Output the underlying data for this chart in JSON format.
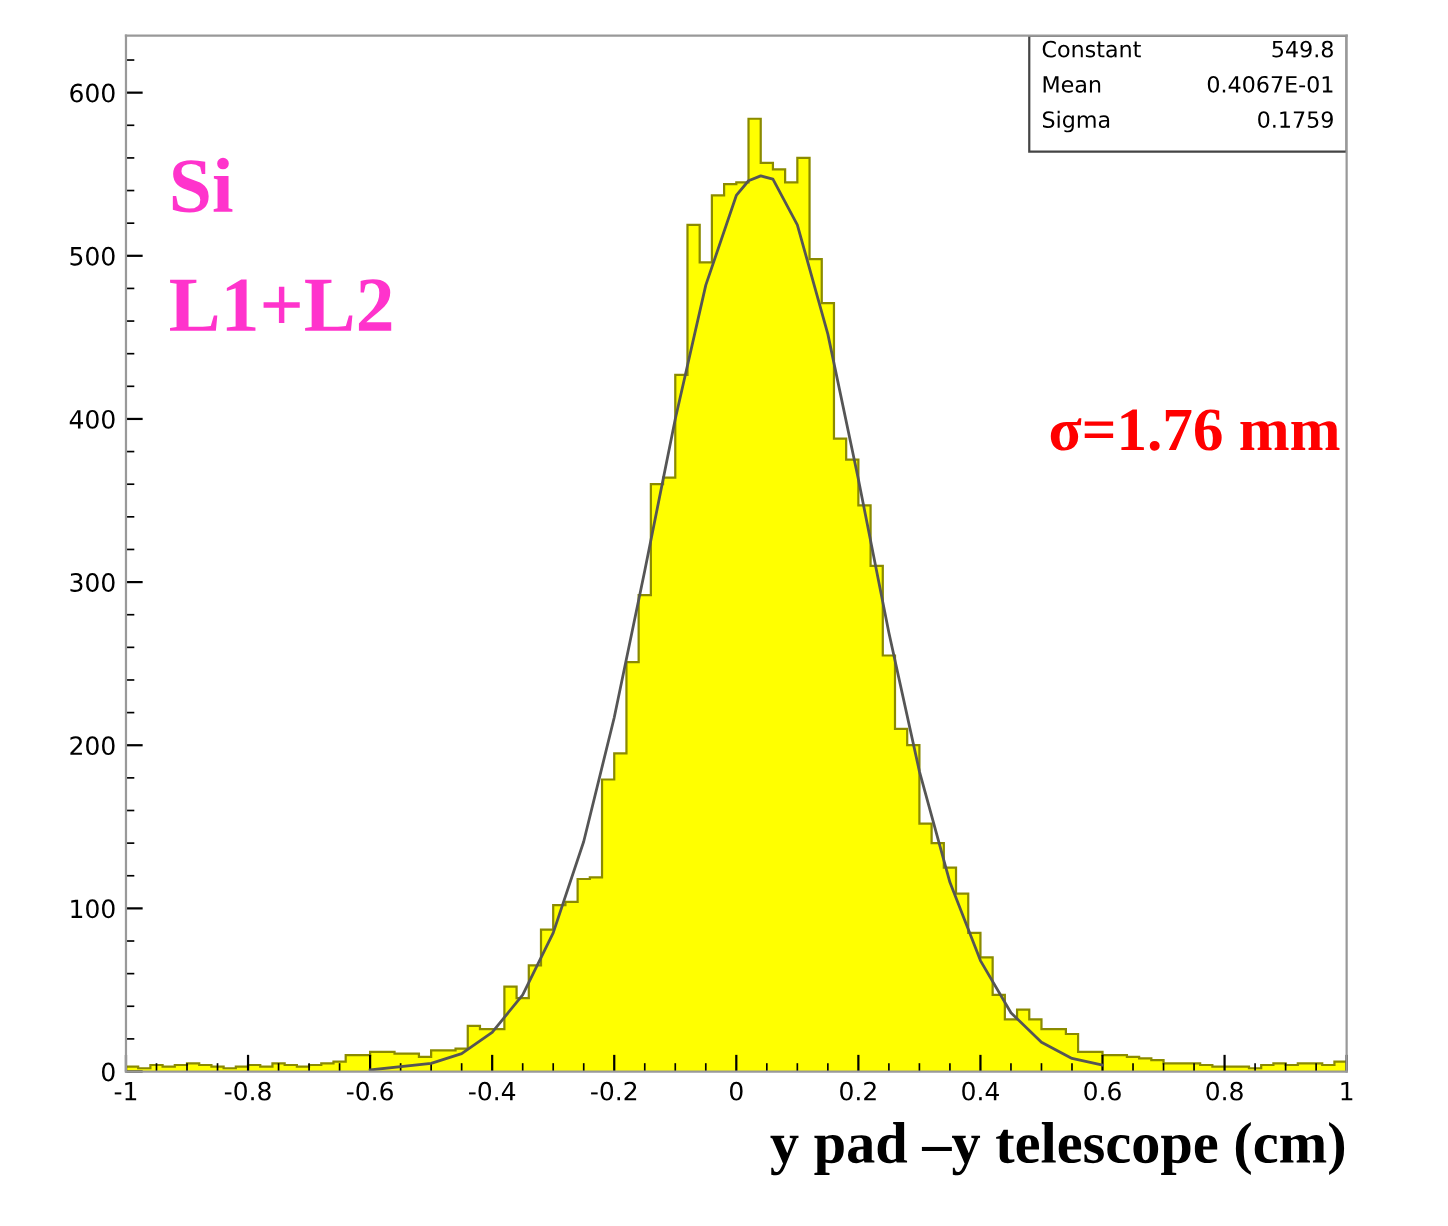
{
  "chart_data": {
    "type": "histogram",
    "xlabel": "y pad –y telescope (cm)",
    "bins": [
      -1.0,
      -0.98,
      -0.96,
      -0.94,
      -0.92,
      -0.9,
      -0.88,
      -0.86,
      -0.84,
      -0.82,
      -0.8,
      -0.78,
      -0.76,
      -0.74,
      -0.72,
      -0.7,
      -0.68,
      -0.66,
      -0.64,
      -0.62,
      -0.6,
      -0.58,
      -0.56,
      -0.54,
      -0.52,
      -0.5,
      -0.48,
      -0.46,
      -0.44,
      -0.42,
      -0.4,
      -0.38,
      -0.36,
      -0.34,
      -0.32,
      -0.3,
      -0.28,
      -0.26,
      -0.24,
      -0.22,
      -0.2,
      -0.18,
      -0.16,
      -0.14,
      -0.12,
      -0.1,
      -0.08,
      -0.06,
      -0.04,
      -0.02,
      0.0,
      0.02,
      0.04,
      0.06,
      0.08,
      0.1,
      0.12,
      0.14,
      0.16,
      0.18,
      0.2,
      0.22,
      0.24,
      0.26,
      0.28,
      0.3,
      0.32,
      0.34,
      0.36,
      0.38,
      0.4,
      0.42,
      0.44,
      0.46,
      0.48,
      0.5,
      0.52,
      0.54,
      0.56,
      0.58,
      0.6,
      0.62,
      0.64,
      0.66,
      0.68,
      0.7,
      0.72,
      0.74,
      0.76,
      0.78,
      0.8,
      0.82,
      0.84,
      0.86,
      0.88,
      0.9,
      0.92,
      0.94,
      0.96,
      0.98,
      1.0
    ],
    "values": [
      3,
      2,
      4,
      3,
      4,
      5,
      4,
      3,
      2,
      3,
      4,
      3,
      5,
      4,
      3,
      4,
      5,
      6,
      10,
      10,
      12,
      12,
      11,
      11,
      9,
      13,
      13,
      14,
      28,
      26,
      26,
      52,
      45,
      65,
      87,
      102,
      104,
      118,
      119,
      179,
      195,
      251,
      292,
      360,
      364,
      427,
      519,
      496,
      537,
      544,
      545,
      584,
      557,
      553,
      545,
      560,
      498,
      471,
      388,
      375,
      347,
      310,
      255,
      210,
      200,
      152,
      140,
      125,
      109,
      85,
      70,
      47,
      32,
      38,
      32,
      26,
      26,
      23,
      12,
      12,
      10,
      10,
      9,
      8,
      7,
      5,
      5,
      5,
      4,
      3,
      3,
      3,
      2,
      4,
      5,
      4,
      5,
      5,
      4,
      6
    ],
    "color": "#ffff00",
    "series": [
      {
        "type": "line",
        "color": "#555555",
        "x": [
          -0.6,
          -0.5,
          -0.45,
          -0.4,
          -0.35,
          -0.3,
          -0.25,
          -0.2,
          -0.15,
          -0.1,
          -0.05,
          0.0,
          0.02,
          0.04,
          0.06,
          0.1,
          0.15,
          0.2,
          0.25,
          0.3,
          0.35,
          0.4,
          0.45,
          0.5,
          0.55,
          0.6
        ],
        "values": [
          1,
          5,
          11,
          24,
          47,
          85,
          141,
          217,
          307,
          400,
          482,
          537,
          546,
          549,
          547,
          519,
          452,
          363,
          269,
          184,
          116,
          68,
          36,
          18,
          8,
          4
        ]
      }
    ],
    "xlim": [
      -1,
      1
    ],
    "xticks": [
      -1,
      -0.8,
      -0.6,
      -0.4,
      -0.2,
      0,
      0.2,
      0.4,
      0.6,
      0.8,
      1
    ],
    "ylim": [
      0,
      635
    ],
    "yticks": [
      0,
      100,
      200,
      300,
      400,
      500,
      600
    ],
    "grid": false,
    "annotations": [
      "Si",
      "L1+L2",
      "σ=1.76 mm",
      "Constant",
      "549.8",
      "Mean",
      "0.4067E-01",
      "Sigma",
      "0.1759"
    ]
  }
}
